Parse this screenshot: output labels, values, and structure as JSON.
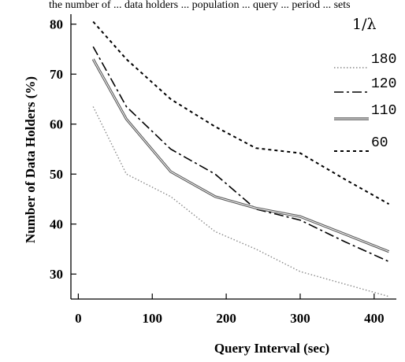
{
  "caption_fragment": "the number of ... data holders ... population ... query ... period ... sets",
  "chart_data": {
    "type": "line",
    "title": "",
    "xlabel": "Query Interval (sec)",
    "ylabel": "Number of Data Holders (%)",
    "xlim": [
      -10,
      430
    ],
    "ylim": [
      25,
      82
    ],
    "xticks": [
      0,
      100,
      200,
      300,
      400
    ],
    "yticks": [
      30,
      40,
      50,
      60,
      70,
      80
    ],
    "legend_title": "1/λ",
    "legend_position": "top-right",
    "grid": false,
    "series": [
      {
        "name": "180",
        "style": "dotted-light",
        "color": "#8a8a8a",
        "x": [
          20,
          65,
          125,
          185,
          240,
          300,
          360,
          420
        ],
        "y": [
          63.5,
          50,
          45.5,
          38.5,
          35,
          30.5,
          28,
          25.5
        ]
      },
      {
        "name": "120",
        "style": "dash-dot",
        "color": "#000000",
        "x": [
          20,
          65,
          125,
          185,
          240,
          300,
          360,
          420
        ],
        "y": [
          75.5,
          63.5,
          55,
          50,
          43,
          40.8,
          36.5,
          32.5
        ]
      },
      {
        "name": "110",
        "style": "double-solid",
        "color": "#5a5a5a",
        "x": [
          20,
          65,
          125,
          185,
          240,
          300,
          360,
          420
        ],
        "y": [
          73,
          61,
          50.5,
          45.5,
          43.2,
          41.5,
          38,
          34.5
        ]
      },
      {
        "name": "60",
        "style": "dashed",
        "color": "#000000",
        "x": [
          20,
          65,
          125,
          185,
          240,
          300,
          360,
          420
        ],
        "y": [
          80.5,
          73,
          65,
          59.5,
          55.2,
          54.2,
          49,
          44
        ]
      }
    ]
  }
}
